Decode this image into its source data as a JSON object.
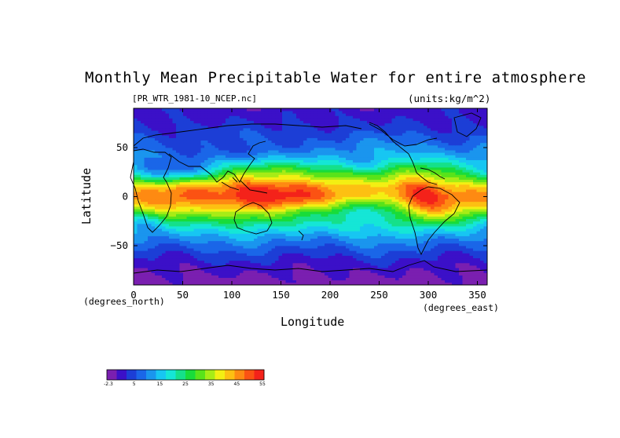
{
  "figure": {
    "title": "Monthly Mean Precipitable Water for entire atmosphere",
    "file_label": "[PR_WTR_1981-10_NCEP.nc]",
    "units_label": "(units:kg/m^2)"
  },
  "chart_data": {
    "type": "heatmap",
    "title": "Monthly Mean Precipitable Water for entire atmosphere",
    "xlabel": "Longitude",
    "ylabel": "Latitude",
    "x_unit": "(degrees_north)",
    "y_unit": "(degrees_east)",
    "xlim": [
      0,
      360
    ],
    "ylim": [
      -90,
      90
    ],
    "x_ticks": [
      0,
      50,
      100,
      150,
      200,
      250,
      300,
      350
    ],
    "y_ticks": [
      -50,
      0,
      50
    ],
    "grid": false,
    "colorbar": {
      "ticks": [
        "-2.3",
        "5",
        "15",
        "25",
        "35",
        "45",
        "55"
      ],
      "colors": [
        "#7a1fb0",
        "#3b10c8",
        "#1c3ed6",
        "#1a66e8",
        "#1a95ee",
        "#17c6f2",
        "#15e6d6",
        "#15e08a",
        "#18dc3a",
        "#59e31a",
        "#a7ec16",
        "#f3ef13",
        "#fdc012",
        "#fe8a12",
        "#fb5213",
        "#f4221a"
      ]
    },
    "zonal_mean_by_latitude": {
      "lat": [
        -90,
        -80,
        -70,
        -60,
        -50,
        -40,
        -30,
        -20,
        -10,
        0,
        10,
        20,
        30,
        40,
        50,
        60,
        70,
        80,
        90
      ],
      "value": [
        -1,
        1,
        3,
        6,
        10,
        15,
        22,
        31,
        40,
        45,
        43,
        34,
        25,
        18,
        13,
        9,
        6,
        4,
        3
      ]
    }
  }
}
